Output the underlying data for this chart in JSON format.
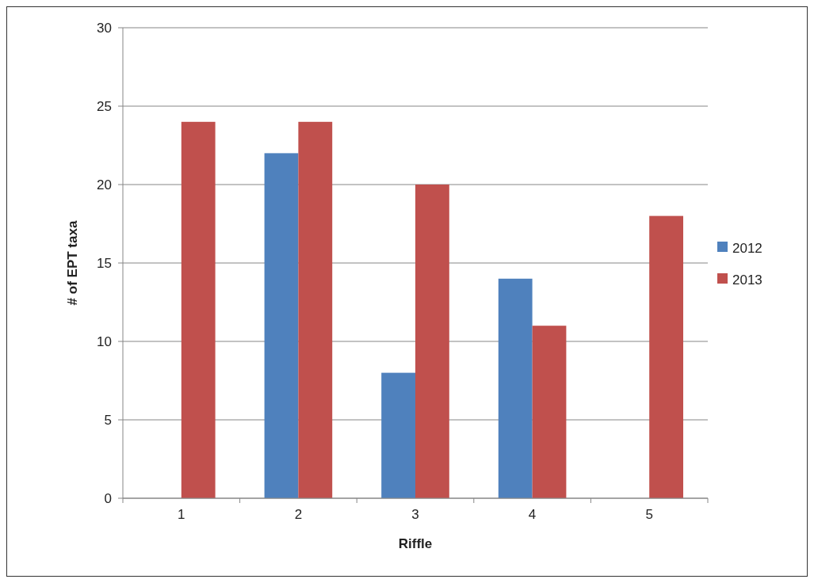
{
  "chart_data": {
    "type": "bar",
    "xlabel": "Riffle",
    "ylabel": "# of EPT taxa",
    "categories": [
      "1",
      "2",
      "3",
      "4",
      "5"
    ],
    "series": [
      {
        "name": "2012",
        "color": "#4f81bd",
        "values": [
          null,
          22,
          8,
          14,
          null
        ]
      },
      {
        "name": "2013",
        "color": "#c0504d",
        "values": [
          24,
          24,
          20,
          11,
          18
        ]
      }
    ],
    "ylim": [
      0,
      30
    ],
    "yticks": [
      0,
      5,
      10,
      15,
      20,
      25,
      30
    ],
    "grid": "y",
    "legend": "right"
  }
}
